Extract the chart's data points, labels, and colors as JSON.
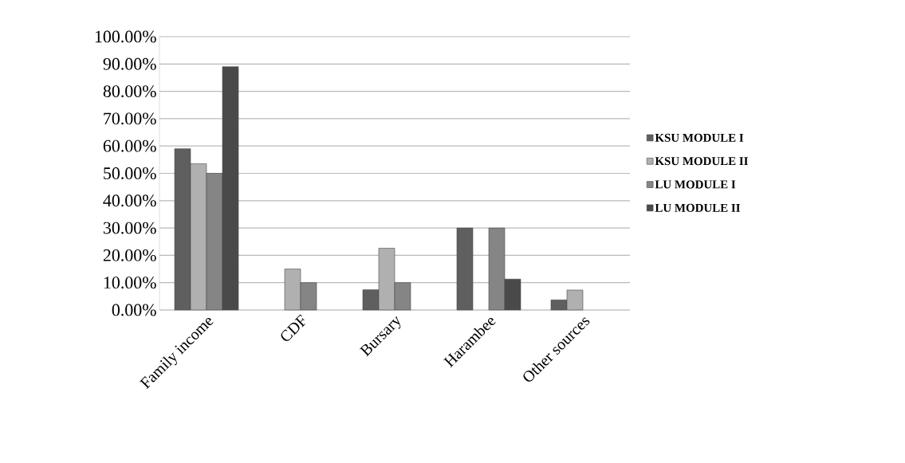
{
  "chart_data": {
    "type": "bar",
    "categories": [
      "Family income",
      "CDF",
      "Bursary",
      "Harambee",
      "Other sources"
    ],
    "series": [
      {
        "name": "KSU MODULE I",
        "color": "#5f5f5f",
        "values": [
          59,
          null,
          7.4,
          30,
          3.7
        ]
      },
      {
        "name": "KSU MODULE II",
        "color": "#b0b0b0",
        "values": [
          53.5,
          15,
          22.6,
          null,
          7.3
        ]
      },
      {
        "name": "LU MODULE I",
        "color": "#858585",
        "values": [
          50,
          10,
          10,
          30,
          null
        ]
      },
      {
        "name": "LU MODULE II",
        "color": "#4a4a4a",
        "values": [
          89,
          null,
          null,
          11.3,
          null
        ]
      }
    ],
    "ylim": [
      0,
      100
    ],
    "yticks": [
      {
        "value": 0,
        "label": "0.00%"
      },
      {
        "value": 10,
        "label": "10.00%"
      },
      {
        "value": 20,
        "label": "20.00%"
      },
      {
        "value": 30,
        "label": "30.00%"
      },
      {
        "value": 40,
        "label": "40.00%"
      },
      {
        "value": 50,
        "label": "50.00%"
      },
      {
        "value": 60,
        "label": "60.00%"
      },
      {
        "value": 70,
        "label": "70.00%"
      },
      {
        "value": 80,
        "label": "80.00%"
      },
      {
        "value": 90,
        "label": "90.00%"
      },
      {
        "value": 100,
        "label": "100.00%"
      }
    ],
    "grid": "y",
    "legend": "right"
  }
}
